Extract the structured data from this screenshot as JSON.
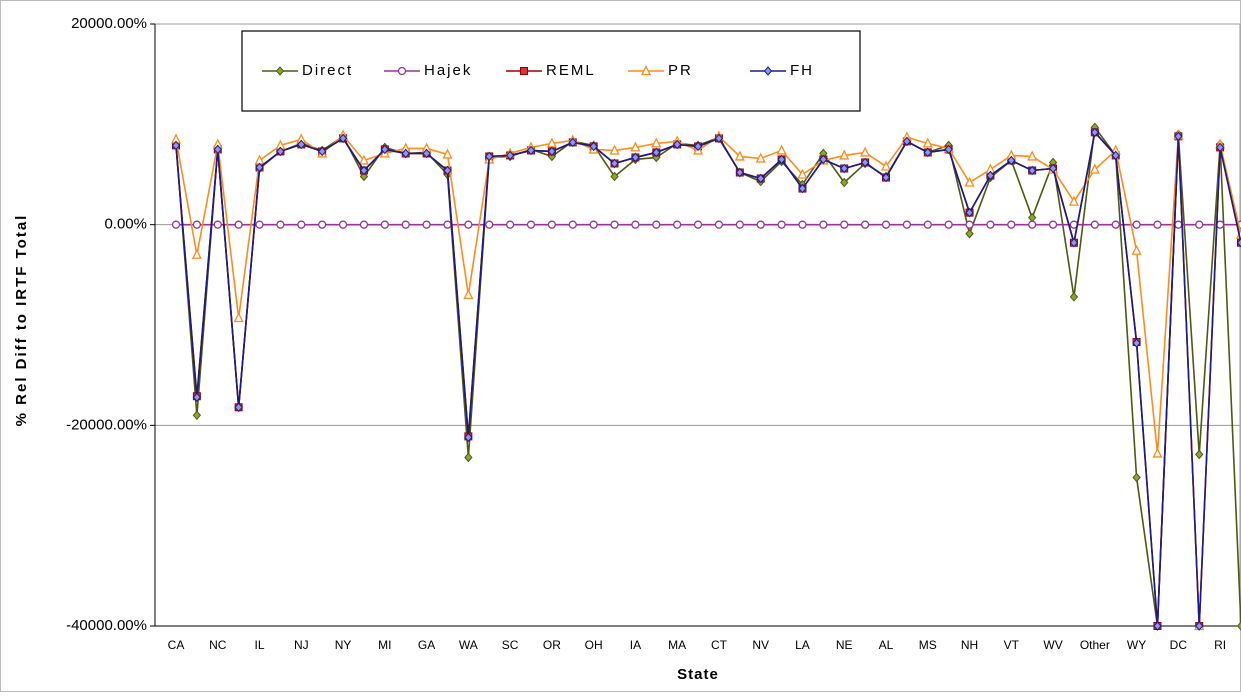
{
  "chart_data": {
    "type": "line",
    "y_label": "% Rel Diff to IRTF Total",
    "x_label": "State",
    "categories": [
      "CA",
      null,
      "NC",
      null,
      "IL",
      null,
      "NJ",
      null,
      "NY",
      null,
      "MI",
      null,
      "GA",
      null,
      "WA",
      null,
      "SC",
      null,
      "OR",
      null,
      "OH",
      null,
      "IA",
      null,
      "MA",
      null,
      "CT",
      null,
      "NV",
      null,
      "LA",
      null,
      "NE",
      null,
      "AL",
      null,
      "MS",
      null,
      "NH",
      null,
      "VT",
      null,
      "WV",
      null,
      "Other",
      null,
      "WY",
      null,
      "DC",
      null,
      "RI",
      null
    ],
    "ylim": [
      -40000,
      20000
    ],
    "yticks": [
      {
        "value": 20000,
        "label": "20000.00%"
      },
      {
        "value": 0,
        "label": "0.00%"
      },
      {
        "value": -20000,
        "label": "-20000.00%"
      },
      {
        "value": -40000,
        "label": "-40000.00%"
      }
    ],
    "grid": true,
    "legend": "top",
    "series": [
      {
        "name": "Direct",
        "color": "#4d5a10",
        "marker": "diamond",
        "values": [
          8100,
          -19000,
          7600,
          -18200,
          5600,
          7300,
          8100,
          7400,
          8800,
          4800,
          7700,
          7100,
          7200,
          5000,
          -23200,
          6700,
          6800,
          7500,
          6800,
          8300,
          7900,
          4800,
          6500,
          6700,
          8100,
          7900,
          8700,
          5200,
          4300,
          6300,
          4000,
          7100,
          4200,
          6100,
          4800,
          8300,
          7200,
          7900,
          -900,
          4700,
          6400,
          700,
          6200,
          -7200,
          9700,
          6900,
          -25200,
          -40000,
          9000,
          -22900,
          8000,
          -40000
        ]
      },
      {
        "name": "Hajek",
        "color": "#993399",
        "marker": "circle",
        "values": [
          0,
          0,
          0,
          0,
          0,
          0,
          0,
          0,
          0,
          0,
          0,
          0,
          0,
          0,
          0,
          0,
          0,
          0,
          0,
          0,
          0,
          0,
          0,
          0,
          0,
          0,
          0,
          0,
          0,
          0,
          0,
          0,
          0,
          0,
          0,
          0,
          0,
          0,
          0,
          0,
          0,
          0,
          0,
          0,
          0,
          0,
          0,
          0,
          0,
          0,
          0,
          0
        ]
      },
      {
        "name": "REML",
        "color": "#990000",
        "marker": "square",
        "values": [
          7900,
          -17100,
          7500,
          -18200,
          5700,
          7300,
          8000,
          7300,
          8600,
          5400,
          7500,
          7100,
          7100,
          5400,
          -21100,
          6800,
          6900,
          7400,
          7300,
          8200,
          7800,
          6100,
          6700,
          7200,
          8000,
          7800,
          8600,
          5200,
          4600,
          6500,
          3600,
          6500,
          5600,
          6200,
          4700,
          8300,
          7200,
          7500,
          1200,
          4900,
          6400,
          5400,
          5600,
          -1800,
          9200,
          6900,
          -11700,
          -40000,
          8800,
          -40000,
          7700,
          -1800
        ]
      },
      {
        "name": "PR",
        "color": "#ff8c1a",
        "marker": "triangle",
        "values": [
          8500,
          -3000,
          8000,
          -9300,
          6400,
          7900,
          8500,
          7100,
          8900,
          6400,
          7100,
          7600,
          7600,
          7000,
          -7000,
          6500,
          7100,
          7700,
          8100,
          8400,
          7500,
          7400,
          7700,
          8100,
          8300,
          7400,
          8800,
          6800,
          6600,
          7400,
          5000,
          6400,
          6900,
          7200,
          5800,
          8700,
          8100,
          7600,
          4200,
          5500,
          6900,
          6800,
          5500,
          2300,
          5500,
          7400,
          -2600,
          -22800,
          8900,
          -40000,
          8000,
          -1000
        ]
      },
      {
        "name": "FH",
        "color": "#1a1a8c",
        "marker": "diamond",
        "values": [
          7900,
          -17200,
          7500,
          -18200,
          5700,
          7300,
          8000,
          7300,
          8600,
          5400,
          7500,
          7100,
          7100,
          5400,
          -21200,
          6800,
          6900,
          7400,
          7300,
          8200,
          7800,
          6100,
          6700,
          7200,
          8000,
          7800,
          8600,
          5200,
          4600,
          6500,
          3600,
          6500,
          5600,
          6200,
          4700,
          8300,
          7200,
          7500,
          1200,
          4900,
          6400,
          5400,
          5600,
          -1800,
          9200,
          6900,
          -11800,
          -40000,
          8800,
          -40000,
          7700,
          -1800
        ]
      }
    ]
  }
}
